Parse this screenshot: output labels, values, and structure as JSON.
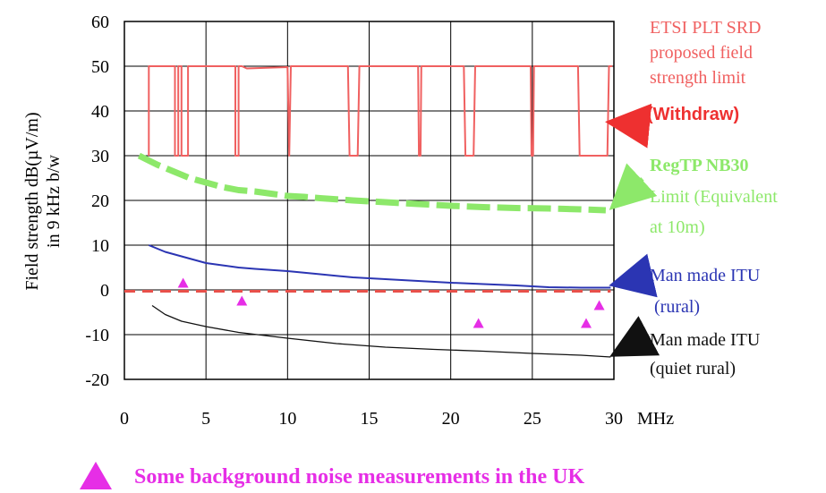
{
  "chart_data": {
    "type": "line",
    "xlabel": "MHz",
    "ylabel_line1": "Field strength dB(µV/m)",
    "ylabel_line2": "in 9 kHz b/w",
    "xlim": [
      0,
      30
    ],
    "ylim": [
      -20,
      60
    ],
    "x_ticks": [
      0,
      5,
      10,
      15,
      20,
      25,
      30
    ],
    "y_ticks": [
      60,
      50,
      40,
      30,
      20,
      10,
      0,
      -10,
      -20
    ],
    "x_tick_labels": [
      "0",
      "5",
      "10",
      "15",
      "20",
      "25",
      "30"
    ],
    "y_tick_labels": [
      "60",
      "50",
      "40",
      "30",
      "20",
      "10",
      "0",
      "-10",
      "-20"
    ],
    "grid": true,
    "series": [
      {
        "key": "etsi",
        "color": "#f06060",
        "style": "solid",
        "points": [
          [
            1.5,
            30
          ],
          [
            1.5,
            50
          ],
          [
            3.1,
            50
          ],
          [
            3.1,
            30
          ],
          [
            3.3,
            30
          ],
          [
            3.3,
            50
          ],
          [
            3.5,
            50
          ],
          [
            3.5,
            30
          ],
          [
            3.9,
            30
          ],
          [
            3.9,
            50
          ],
          [
            6.8,
            50
          ],
          [
            6.8,
            30
          ],
          [
            7.0,
            30
          ],
          [
            7.0,
            50
          ],
          [
            7.2,
            50
          ],
          [
            7.5,
            49.5
          ],
          [
            10.0,
            49.8
          ],
          [
            10.1,
            30
          ],
          [
            10.2,
            50
          ],
          [
            13.7,
            50
          ],
          [
            13.8,
            30
          ],
          [
            14.3,
            30
          ],
          [
            14.4,
            50
          ],
          [
            18.0,
            50
          ],
          [
            18.05,
            30
          ],
          [
            18.15,
            30
          ],
          [
            18.2,
            50
          ],
          [
            20.8,
            50
          ],
          [
            20.9,
            30
          ],
          [
            21.4,
            30
          ],
          [
            21.5,
            50
          ],
          [
            24.9,
            50
          ],
          [
            24.95,
            30
          ],
          [
            25.05,
            30
          ],
          [
            25.1,
            50
          ],
          [
            27.8,
            50
          ],
          [
            27.9,
            30
          ],
          [
            29.6,
            30
          ],
          [
            29.7,
            50
          ],
          [
            29.9,
            50
          ]
        ]
      },
      {
        "key": "regtp",
        "color": "#8de86a",
        "style": "thick-dash",
        "points": [
          [
            0.9,
            30
          ],
          [
            2.0,
            28
          ],
          [
            3.0,
            26.5
          ],
          [
            4.0,
            25
          ],
          [
            5.0,
            24
          ],
          [
            6.0,
            23
          ],
          [
            7.0,
            22.3
          ],
          [
            8.0,
            22
          ],
          [
            9.0,
            21.5
          ],
          [
            10.0,
            21
          ],
          [
            11.0,
            20.8
          ],
          [
            12.0,
            20.5
          ],
          [
            14.0,
            20
          ],
          [
            16.0,
            19.6
          ],
          [
            18.0,
            19.2
          ],
          [
            20.0,
            18.8
          ],
          [
            22.0,
            18.5
          ],
          [
            24.0,
            18.3
          ],
          [
            26.0,
            18.2
          ],
          [
            28.0,
            18
          ],
          [
            29.5,
            17.8
          ]
        ]
      },
      {
        "key": "itu_rural",
        "color": "#2b35b3",
        "style": "solid",
        "points": [
          [
            1.5,
            10
          ],
          [
            2.5,
            8.5
          ],
          [
            4.0,
            7
          ],
          [
            5.0,
            6
          ],
          [
            6.0,
            5.5
          ],
          [
            7.0,
            5
          ],
          [
            8.0,
            4.7
          ],
          [
            10.0,
            4.2
          ],
          [
            12.0,
            3.5
          ],
          [
            14.0,
            2.8
          ],
          [
            16.0,
            2.4
          ],
          [
            18.0,
            2
          ],
          [
            20.0,
            1.6
          ],
          [
            22.0,
            1.3
          ],
          [
            24.0,
            1.0
          ],
          [
            26.0,
            0.6
          ],
          [
            28.0,
            0.5
          ],
          [
            29.8,
            0.5
          ]
        ]
      },
      {
        "key": "zero_line",
        "color": "#e8504a",
        "style": "dashed",
        "points": [
          [
            0,
            -0.3
          ],
          [
            29.8,
            -0.3
          ]
        ]
      },
      {
        "key": "itu_quiet",
        "color": "#111111",
        "style": "thin",
        "points": [
          [
            1.7,
            -3.5
          ],
          [
            2.5,
            -5.5
          ],
          [
            3.5,
            -7
          ],
          [
            5.0,
            -8.2
          ],
          [
            7.0,
            -9.5
          ],
          [
            10.0,
            -10.8
          ],
          [
            13.0,
            -12
          ],
          [
            16.0,
            -12.8
          ],
          [
            19.0,
            -13.3
          ],
          [
            22.0,
            -13.7
          ],
          [
            25.0,
            -14.2
          ],
          [
            28.0,
            -14.6
          ],
          [
            29.8,
            -15
          ]
        ]
      }
    ],
    "measurements": [
      [
        3.6,
        1.5
      ],
      [
        7.2,
        -2.5
      ],
      [
        21.7,
        -7.5
      ],
      [
        28.3,
        -7.5
      ],
      [
        29.1,
        -3.5
      ]
    ],
    "annotations": {
      "etsi": {
        "lines": [
          "ETSI PLT SRD",
          "proposed field",
          "strength limit"
        ],
        "bold_line": "(Withdraw)",
        "color": "#f06060",
        "bold_color": "#ee3030"
      },
      "regtp": {
        "bold_line": "RegTP NB30",
        "lines": [
          "Limit (Equivalent",
          "at 10m)"
        ],
        "color": "#8de86a"
      },
      "itu_rural": {
        "lines": [
          "Man made ITU",
          " (rural)"
        ],
        "color": "#2b35b3"
      },
      "itu_quiet": {
        "lines": [
          "Man made ITU",
          "(quiet rural)"
        ],
        "color": "#111111"
      }
    },
    "legend_note": "Some background noise measurements in the UK",
    "legend_note_color": "#e62ee6",
    "marker_color": "#e62ee6"
  }
}
